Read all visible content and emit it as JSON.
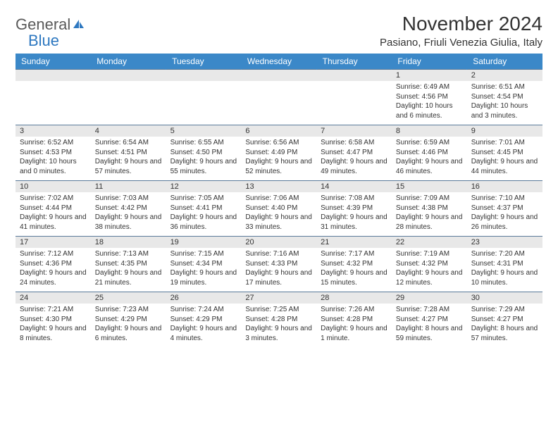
{
  "brand": {
    "word1": "General",
    "word2": "Blue"
  },
  "title": "November 2024",
  "location": "Pasiano, Friuli Venezia Giulia, Italy",
  "colors": {
    "header_bg": "#3b88c8",
    "header_text": "#ffffff",
    "daynum_bg": "#e8e8e8",
    "border": "#5a7a9a",
    "logo_gray": "#5a5a5a",
    "logo_blue": "#2e78c0",
    "text": "#333333"
  },
  "weekdays": [
    "Sunday",
    "Monday",
    "Tuesday",
    "Wednesday",
    "Thursday",
    "Friday",
    "Saturday"
  ],
  "weeks": [
    [
      null,
      null,
      null,
      null,
      null,
      {
        "n": "1",
        "sr": "6:49 AM",
        "ss": "4:56 PM",
        "dl": "10 hours and 6 minutes."
      },
      {
        "n": "2",
        "sr": "6:51 AM",
        "ss": "4:54 PM",
        "dl": "10 hours and 3 minutes."
      }
    ],
    [
      {
        "n": "3",
        "sr": "6:52 AM",
        "ss": "4:53 PM",
        "dl": "10 hours and 0 minutes."
      },
      {
        "n": "4",
        "sr": "6:54 AM",
        "ss": "4:51 PM",
        "dl": "9 hours and 57 minutes."
      },
      {
        "n": "5",
        "sr": "6:55 AM",
        "ss": "4:50 PM",
        "dl": "9 hours and 55 minutes."
      },
      {
        "n": "6",
        "sr": "6:56 AM",
        "ss": "4:49 PM",
        "dl": "9 hours and 52 minutes."
      },
      {
        "n": "7",
        "sr": "6:58 AM",
        "ss": "4:47 PM",
        "dl": "9 hours and 49 minutes."
      },
      {
        "n": "8",
        "sr": "6:59 AM",
        "ss": "4:46 PM",
        "dl": "9 hours and 46 minutes."
      },
      {
        "n": "9",
        "sr": "7:01 AM",
        "ss": "4:45 PM",
        "dl": "9 hours and 44 minutes."
      }
    ],
    [
      {
        "n": "10",
        "sr": "7:02 AM",
        "ss": "4:44 PM",
        "dl": "9 hours and 41 minutes."
      },
      {
        "n": "11",
        "sr": "7:03 AM",
        "ss": "4:42 PM",
        "dl": "9 hours and 38 minutes."
      },
      {
        "n": "12",
        "sr": "7:05 AM",
        "ss": "4:41 PM",
        "dl": "9 hours and 36 minutes."
      },
      {
        "n": "13",
        "sr": "7:06 AM",
        "ss": "4:40 PM",
        "dl": "9 hours and 33 minutes."
      },
      {
        "n": "14",
        "sr": "7:08 AM",
        "ss": "4:39 PM",
        "dl": "9 hours and 31 minutes."
      },
      {
        "n": "15",
        "sr": "7:09 AM",
        "ss": "4:38 PM",
        "dl": "9 hours and 28 minutes."
      },
      {
        "n": "16",
        "sr": "7:10 AM",
        "ss": "4:37 PM",
        "dl": "9 hours and 26 minutes."
      }
    ],
    [
      {
        "n": "17",
        "sr": "7:12 AM",
        "ss": "4:36 PM",
        "dl": "9 hours and 24 minutes."
      },
      {
        "n": "18",
        "sr": "7:13 AM",
        "ss": "4:35 PM",
        "dl": "9 hours and 21 minutes."
      },
      {
        "n": "19",
        "sr": "7:15 AM",
        "ss": "4:34 PM",
        "dl": "9 hours and 19 minutes."
      },
      {
        "n": "20",
        "sr": "7:16 AM",
        "ss": "4:33 PM",
        "dl": "9 hours and 17 minutes."
      },
      {
        "n": "21",
        "sr": "7:17 AM",
        "ss": "4:32 PM",
        "dl": "9 hours and 15 minutes."
      },
      {
        "n": "22",
        "sr": "7:19 AM",
        "ss": "4:32 PM",
        "dl": "9 hours and 12 minutes."
      },
      {
        "n": "23",
        "sr": "7:20 AM",
        "ss": "4:31 PM",
        "dl": "9 hours and 10 minutes."
      }
    ],
    [
      {
        "n": "24",
        "sr": "7:21 AM",
        "ss": "4:30 PM",
        "dl": "9 hours and 8 minutes."
      },
      {
        "n": "25",
        "sr": "7:23 AM",
        "ss": "4:29 PM",
        "dl": "9 hours and 6 minutes."
      },
      {
        "n": "26",
        "sr": "7:24 AM",
        "ss": "4:29 PM",
        "dl": "9 hours and 4 minutes."
      },
      {
        "n": "27",
        "sr": "7:25 AM",
        "ss": "4:28 PM",
        "dl": "9 hours and 3 minutes."
      },
      {
        "n": "28",
        "sr": "7:26 AM",
        "ss": "4:28 PM",
        "dl": "9 hours and 1 minute."
      },
      {
        "n": "29",
        "sr": "7:28 AM",
        "ss": "4:27 PM",
        "dl": "8 hours and 59 minutes."
      },
      {
        "n": "30",
        "sr": "7:29 AM",
        "ss": "4:27 PM",
        "dl": "8 hours and 57 minutes."
      }
    ]
  ],
  "labels": {
    "sunrise": "Sunrise:",
    "sunset": "Sunset:",
    "daylight": "Daylight:"
  }
}
